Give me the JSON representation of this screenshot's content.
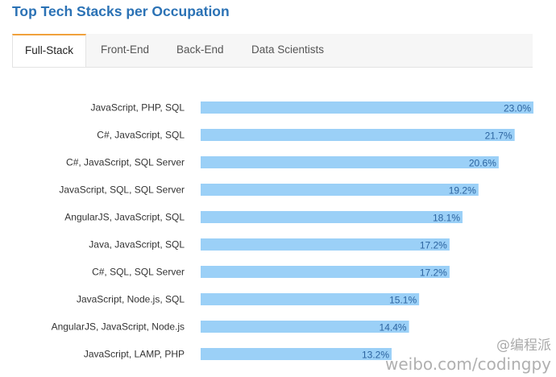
{
  "page": {
    "title": "Top Tech Stacks per Occupation"
  },
  "tabs": [
    {
      "label": "Full-Stack",
      "active": true
    },
    {
      "label": "Front-End",
      "active": false
    },
    {
      "label": "Back-End",
      "active": false
    },
    {
      "label": "Data Scientists",
      "active": false
    }
  ],
  "chart_data": {
    "type": "bar",
    "orientation": "horizontal",
    "categories": [
      "JavaScript, PHP, SQL",
      "C#, JavaScript, SQL",
      "C#, JavaScript, SQL Server",
      "JavaScript, SQL, SQL Server",
      "AngularJS, JavaScript, SQL",
      "Java, JavaScript, SQL",
      "C#, SQL, SQL Server",
      "JavaScript, Node.js, SQL",
      "AngularJS, JavaScript, Node.js",
      "JavaScript, LAMP, PHP"
    ],
    "values": [
      23.0,
      21.7,
      20.6,
      19.2,
      18.1,
      17.2,
      17.2,
      15.1,
      14.4,
      13.2
    ],
    "value_labels": [
      "23.0%",
      "21.7%",
      "20.6%",
      "19.2%",
      "18.1%",
      "17.2%",
      "17.2%",
      "15.1%",
      "14.4%",
      "13.2%"
    ],
    "title": "",
    "xlabel": "",
    "ylabel": "",
    "xlim": [
      0,
      23.0
    ],
    "grid": false,
    "legend": "none",
    "bar_color": "#9bd0f7",
    "label_color": "#2c64a0"
  },
  "watermark": {
    "line1": "@编程派",
    "line2": "weibo.com/codingpy"
  }
}
